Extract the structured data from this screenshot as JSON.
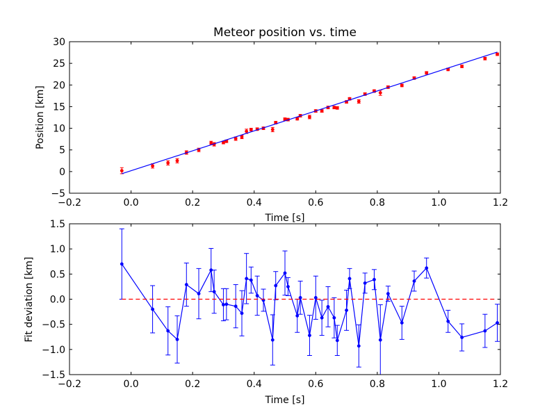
{
  "chart_data": [
    {
      "type": "scatter",
      "title": "Meteor position vs. time",
      "xlabel": "Time [s]",
      "ylabel": "Position [km]",
      "xlim": [
        -0.2,
        1.2
      ],
      "ylim": [
        -5,
        30
      ],
      "xticks": [
        "−0.2",
        "0.0",
        "0.2",
        "0.4",
        "0.6",
        "0.8",
        "1.0",
        "1.2"
      ],
      "xtick_values": [
        -0.2,
        0.0,
        0.2,
        0.4,
        0.6,
        0.8,
        1.0,
        1.2
      ],
      "yticks": [
        "−5",
        "0",
        "5",
        "10",
        "15",
        "20",
        "25",
        "30"
      ],
      "ytick_values": [
        -5,
        0,
        5,
        10,
        15,
        20,
        25,
        30
      ],
      "grid": false,
      "series": [
        {
          "style": "points-with-errorbars",
          "color": "#ff0000",
          "x": [
            -0.03,
            0.07,
            0.12,
            0.15,
            0.18,
            0.22,
            0.26,
            0.27,
            0.3,
            0.31,
            0.34,
            0.36,
            0.375,
            0.39,
            0.41,
            0.43,
            0.46,
            0.47,
            0.5,
            0.51,
            0.54,
            0.55,
            0.58,
            0.6,
            0.62,
            0.64,
            0.66,
            0.67,
            0.7,
            0.71,
            0.74,
            0.76,
            0.79,
            0.81,
            0.835,
            0.88,
            0.92,
            0.96,
            1.03,
            1.075,
            1.15,
            1.19
          ],
          "y": [
            0.2,
            1.3,
            2.0,
            2.5,
            4.4,
            5.0,
            6.6,
            6.3,
            6.7,
            7.0,
            7.6,
            8.0,
            9.3,
            9.7,
            9.8,
            10.0,
            9.7,
            11.3,
            12.1,
            12.0,
            12.2,
            12.9,
            12.6,
            14.0,
            14.0,
            14.8,
            14.8,
            14.7,
            16.1,
            16.8,
            16.2,
            17.9,
            18.6,
            18.2,
            19.5,
            19.9,
            21.6,
            22.8,
            23.6,
            24.3,
            26.1,
            27.1
          ],
          "err": [
            0.7,
            0.5,
            0.5,
            0.5,
            0.4,
            0.4,
            0.4,
            0.4,
            0.3,
            0.3,
            0.4,
            0.4,
            0.5,
            0.3,
            0.3,
            0.3,
            0.5,
            0.3,
            0.3,
            0.3,
            0.3,
            0.3,
            0.4,
            0.3,
            0.3,
            0.3,
            0.3,
            0.3,
            0.3,
            0.3,
            0.4,
            0.3,
            0.3,
            0.6,
            0.3,
            0.3,
            0.3,
            0.3,
            0.3,
            0.3,
            0.3,
            0.3
          ]
        },
        {
          "style": "fit-line",
          "color": "#0000ff",
          "x": [
            -0.03,
            1.19
          ],
          "y": [
            -0.5,
            27.6
          ]
        }
      ]
    },
    {
      "type": "line",
      "title": "",
      "xlabel": "Time [s]",
      "ylabel": "Fit deviation [km]",
      "xlim": [
        -0.2,
        1.2
      ],
      "ylim": [
        -1.5,
        1.5
      ],
      "xticks": [
        "−0.2",
        "0.0",
        "0.2",
        "0.4",
        "0.6",
        "0.8",
        "1.0",
        "1.2"
      ],
      "xtick_values": [
        -0.2,
        0.0,
        0.2,
        0.4,
        0.6,
        0.8,
        1.0,
        1.2
      ],
      "yticks": [
        "−1.5",
        "−1.0",
        "−0.5",
        "0.0",
        "0.5",
        "1.0",
        "1.5"
      ],
      "ytick_values": [
        -1.5,
        -1.0,
        -0.5,
        0.0,
        0.5,
        1.0,
        1.5
      ],
      "grid": false,
      "series": [
        {
          "style": "line-points-errorbars",
          "color": "#0000ff",
          "x": [
            -0.03,
            0.07,
            0.12,
            0.15,
            0.18,
            0.22,
            0.26,
            0.27,
            0.3,
            0.31,
            0.34,
            0.36,
            0.375,
            0.39,
            0.41,
            0.43,
            0.46,
            0.47,
            0.5,
            0.51,
            0.54,
            0.55,
            0.58,
            0.6,
            0.62,
            0.64,
            0.66,
            0.67,
            0.7,
            0.71,
            0.74,
            0.76,
            0.79,
            0.81,
            0.835,
            0.88,
            0.92,
            0.96,
            1.03,
            1.075,
            1.15,
            1.19
          ],
          "y": [
            0.7,
            -0.2,
            -0.63,
            -0.8,
            0.29,
            0.11,
            0.58,
            0.15,
            -0.11,
            -0.1,
            -0.14,
            -0.28,
            0.41,
            0.38,
            0.07,
            -0.02,
            -0.81,
            0.27,
            0.52,
            0.25,
            -0.33,
            0.03,
            -0.72,
            0.03,
            -0.37,
            -0.15,
            -0.37,
            -0.82,
            -0.22,
            0.41,
            -0.93,
            0.32,
            0.39,
            -0.81,
            0.11,
            -0.47,
            0.36,
            0.62,
            -0.44,
            -0.76,
            -0.63,
            -0.47
          ],
          "err": [
            0.7,
            0.47,
            0.48,
            0.47,
            0.43,
            0.5,
            0.43,
            0.43,
            0.32,
            0.31,
            0.43,
            0.45,
            0.5,
            0.26,
            0.39,
            0.22,
            0.5,
            0.28,
            0.44,
            0.18,
            0.33,
            0.33,
            0.4,
            0.43,
            0.35,
            0.4,
            0.4,
            0.3,
            0.4,
            0.2,
            0.42,
            0.2,
            0.2,
            0.7,
            0.15,
            0.33,
            0.2,
            0.2,
            0.22,
            0.27,
            0.33,
            0.37
          ]
        },
        {
          "style": "dashed-line",
          "color": "#ff0000",
          "x": [
            -0.03,
            1.19
          ],
          "y": [
            0.0,
            0.0
          ]
        }
      ]
    }
  ]
}
